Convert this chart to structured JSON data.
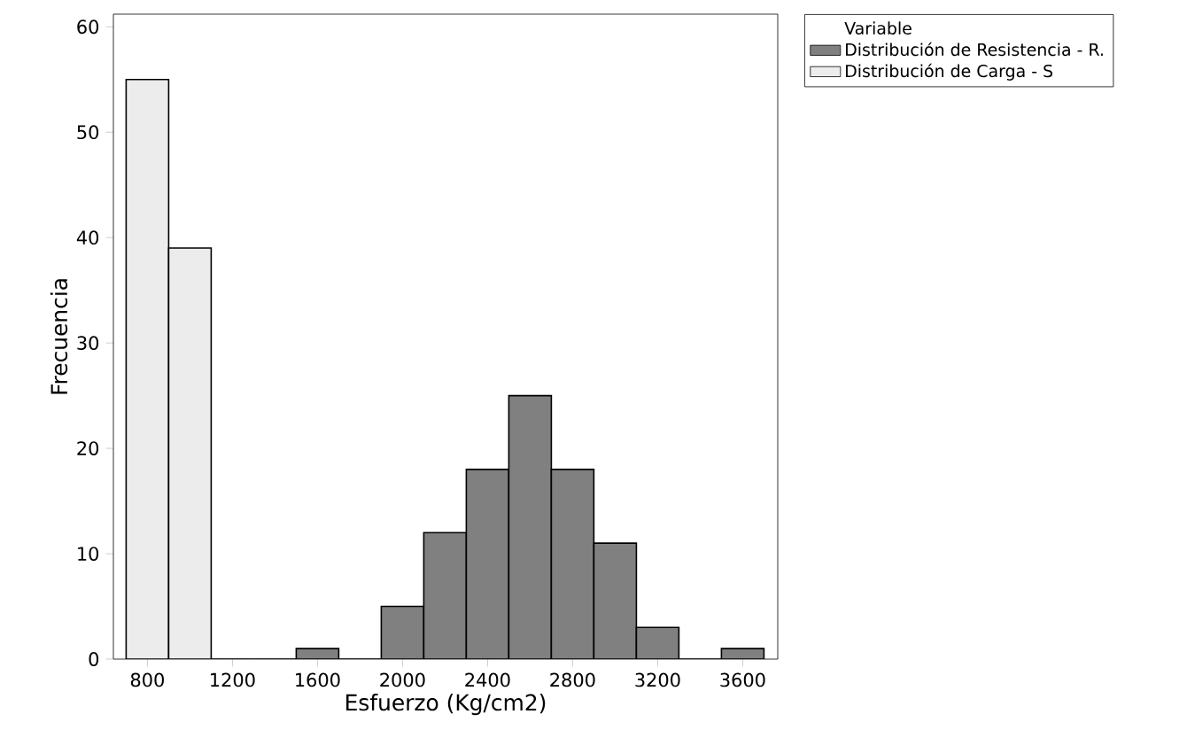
{
  "chart_data": {
    "type": "histogram",
    "xlabel": "Esfuerzo (Kg/cm2)",
    "ylabel": "Frecuencia",
    "legend_title": "Variable",
    "legend": "top right",
    "bins": [
      700,
      900,
      1100,
      1300,
      1500,
      1700,
      1900,
      2100,
      2300,
      2500,
      2700,
      2900,
      3100,
      3300,
      3500,
      3700
    ],
    "xlim": [
      640,
      3765
    ],
    "ylim": [
      0,
      61.2
    ],
    "xticks": [
      800,
      1200,
      1600,
      2000,
      2400,
      2800,
      3200,
      3600
    ],
    "yticks": [
      0,
      10,
      20,
      30,
      40,
      50,
      60
    ],
    "series": [
      {
        "name": "Distribución de Resistencia - R.",
        "color": "#808080",
        "values": [
          null,
          null,
          0,
          0,
          1,
          0,
          5,
          12,
          18,
          25,
          18,
          11,
          3,
          0,
          1
        ]
      },
      {
        "name": "Distribución de Carga - S",
        "color": "#ececec",
        "values": [
          55,
          39,
          null,
          null,
          null,
          null,
          null,
          null,
          null,
          null,
          null,
          null,
          null,
          null,
          null
        ]
      }
    ]
  }
}
